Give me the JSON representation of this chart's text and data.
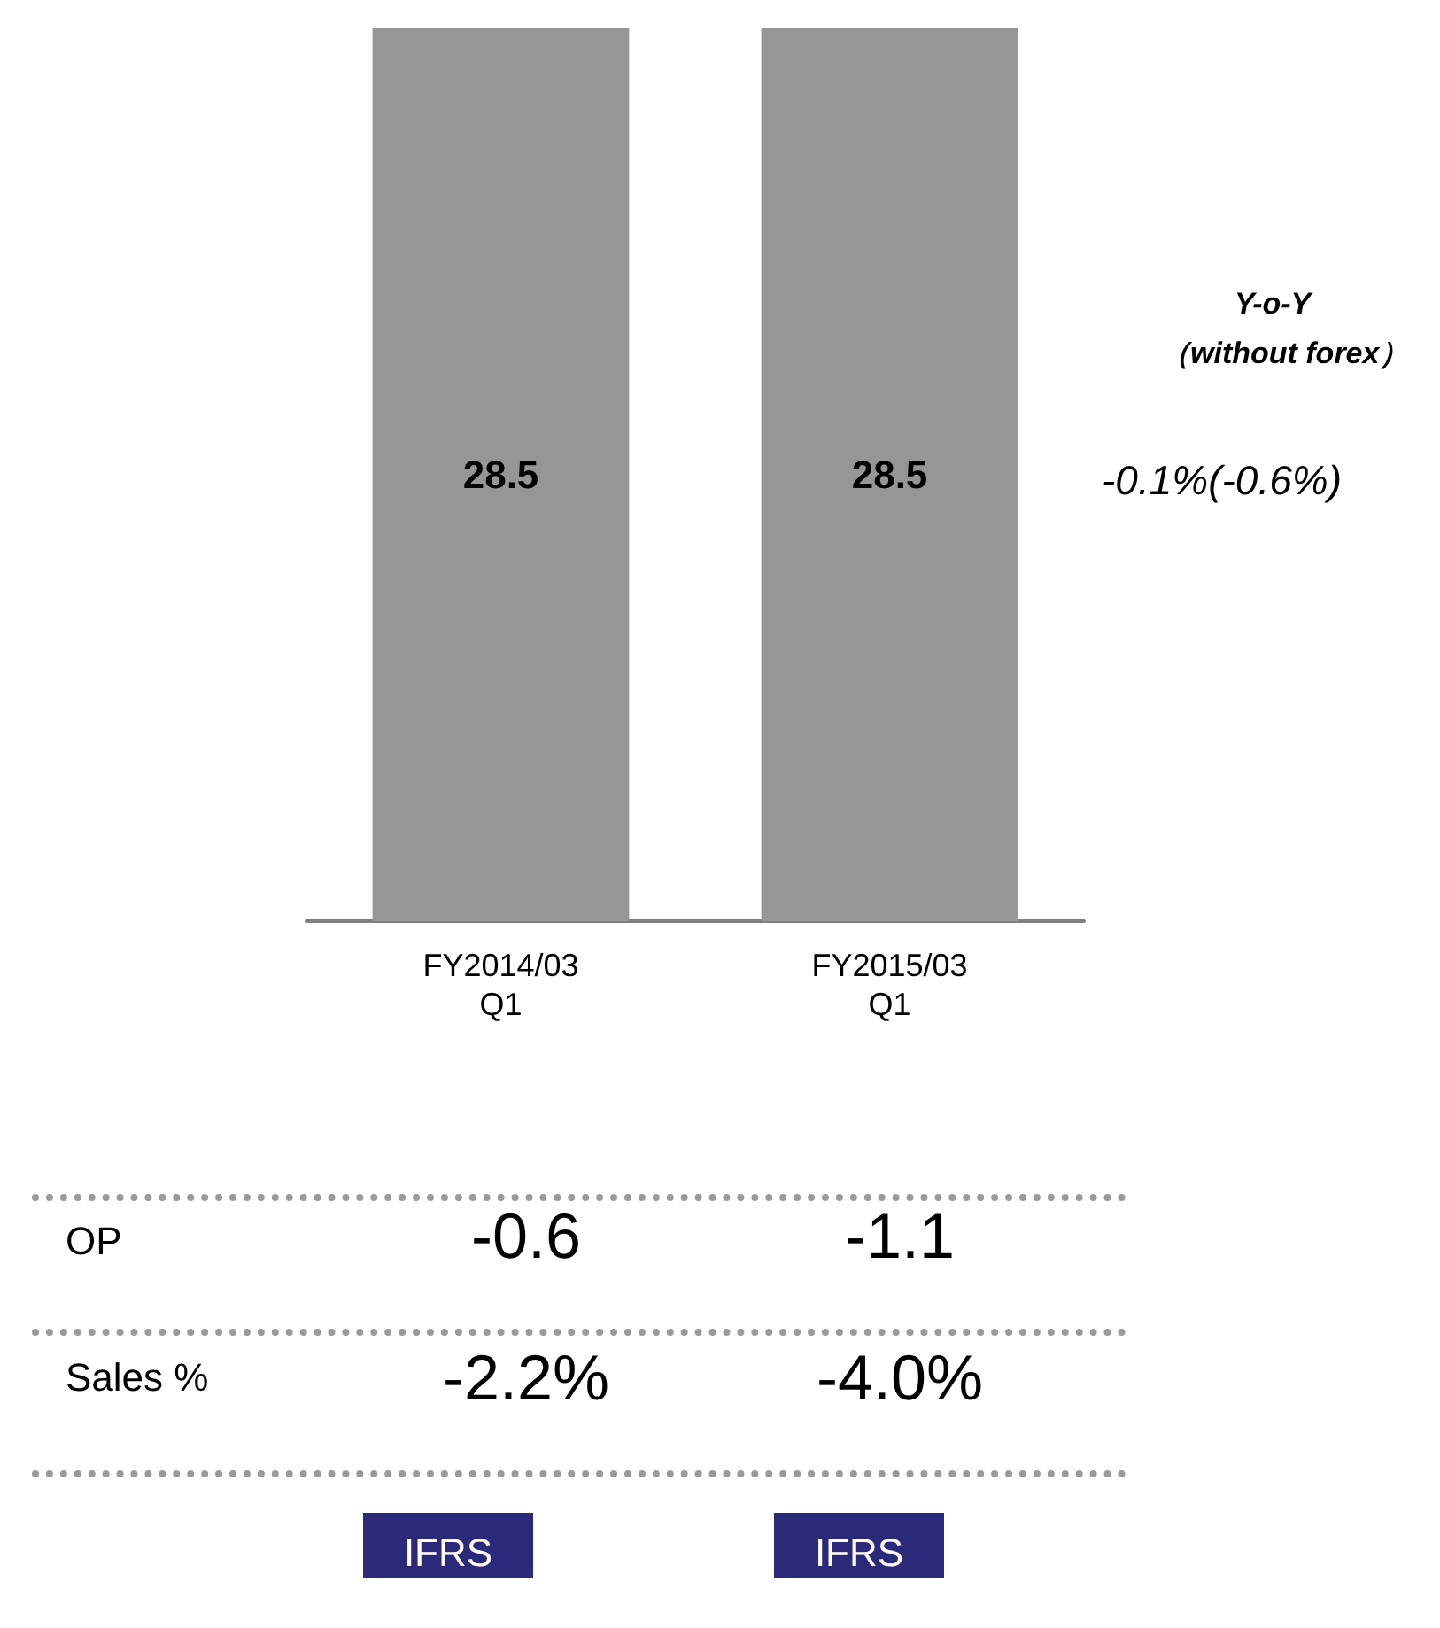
{
  "chart_data": {
    "type": "bar",
    "categories": [
      "FY2014/03\nQ1",
      "FY2015/03\nQ1"
    ],
    "values": [
      28.5,
      28.5
    ],
    "color": "#969696",
    "data_labels": true,
    "annotations": [
      "Y-o-Y",
      "（without forex）",
      "-0.1%(-0.6%)",
      "OP",
      "-0.6",
      "-1.1",
      "Sales %",
      "-2.2%",
      "-4.0%",
      "IFRS",
      "IFRS"
    ]
  }
}
